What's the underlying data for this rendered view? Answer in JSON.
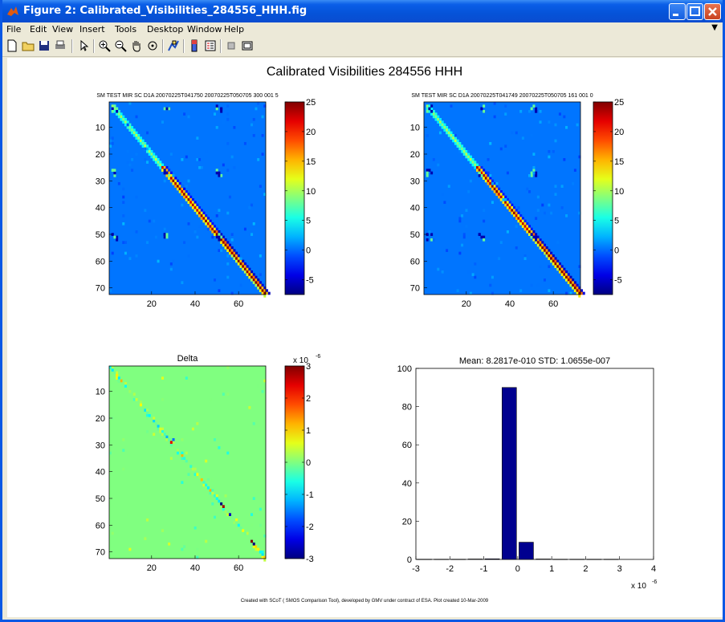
{
  "window": {
    "title": "Figure 2: Calibrated_Visibilities_284556_HHH.fig"
  },
  "menu": [
    "File",
    "Edit",
    "View",
    "Insert",
    "Tools",
    "Desktop",
    "Window",
    "Help"
  ],
  "toolbar": [
    "new-icon",
    "open-icon",
    "save-icon",
    "print-icon",
    "pointer-icon",
    "zoom-in-icon",
    "zoom-out-icon",
    "pan-icon",
    "rotate-icon",
    "data-cursor-icon",
    "colorbar-icon",
    "legend-icon",
    "hide-plot-tools-icon",
    "show-plot-tools-icon"
  ],
  "figure": {
    "title": "Calibrated Visibilities 284556 HHH",
    "footer": "Created with SCoT ( SMOS Comparison Tool), developed by GMV under contract of ESA. Plot created 10-Mar-2009"
  },
  "colors": {
    "accent_bar": "#00008f",
    "delta_bg": "#7fff7f",
    "matrix_bg": "#1e78f0"
  },
  "chart_data": [
    {
      "type": "heatmap",
      "title": "SM TEST MIR SC D1A 20070225T041750 20070225T050705 300 001 5",
      "ytick_labels": [
        "10",
        "20",
        "30",
        "40",
        "50",
        "60",
        "70"
      ],
      "yticks": [
        10,
        20,
        30,
        40,
        50,
        60,
        70
      ],
      "xtick_labels": [
        "20",
        "40",
        "60"
      ],
      "xticks": [
        20,
        40,
        60
      ],
      "xlim": [
        0.5,
        72.5
      ],
      "ylim": [
        0.5,
        72.5
      ],
      "colorbar": {
        "ticks": [
          25,
          20,
          15,
          10,
          5,
          0,
          -5
        ],
        "tick_labels": [
          "25",
          "20",
          "15",
          "10",
          "5",
          "0",
          "-5"
        ],
        "range": [
          -7.5,
          25
        ]
      },
      "pattern": "diagonal-blocks"
    },
    {
      "type": "heatmap",
      "title": "SM TEST MIR SC D1A 20070225T041749 20070225T050705 161 001 0",
      "ytick_labels": [
        "10",
        "20",
        "30",
        "40",
        "50",
        "60",
        "70"
      ],
      "yticks": [
        10,
        20,
        30,
        40,
        50,
        60,
        70
      ],
      "xtick_labels": [
        "20",
        "40",
        "60"
      ],
      "xticks": [
        20,
        40,
        60
      ],
      "xlim": [
        0.5,
        72.5
      ],
      "ylim": [
        0.5,
        72.5
      ],
      "colorbar": {
        "ticks": [
          25,
          20,
          15,
          10,
          5,
          0,
          -5
        ],
        "tick_labels": [
          "25",
          "20",
          "15",
          "10",
          "5",
          "0",
          "-5"
        ],
        "range": [
          -7.5,
          25
        ]
      },
      "pattern": "diagonal-blocks"
    },
    {
      "type": "heatmap",
      "title": "Delta",
      "ytick_labels": [
        "10",
        "20",
        "30",
        "40",
        "50",
        "60",
        "70"
      ],
      "yticks": [
        10,
        20,
        30,
        40,
        50,
        60,
        70
      ],
      "xtick_labels": [
        "20",
        "40",
        "60"
      ],
      "xticks": [
        20,
        40,
        60
      ],
      "xlim": [
        0.5,
        72.5
      ],
      "ylim": [
        0.5,
        72.5
      ],
      "colorbar": {
        "ticks": [
          3,
          2,
          1,
          0,
          -1,
          -2,
          -3
        ],
        "tick_labels": [
          "3",
          "2",
          "1",
          "0",
          "-1",
          "-2",
          "-3"
        ],
        "range": [
          -3,
          3
        ],
        "multiplier": "x 10",
        "exponent": "-6"
      },
      "pattern": "sparse-diagonal"
    },
    {
      "type": "bar",
      "title": "Mean: 8.2817e-010 STD: 1.0655e-007",
      "x": [
        -2.75,
        -2.25,
        -1.75,
        -1.25,
        -0.75,
        -0.25,
        0.25,
        0.75,
        1.25,
        1.75,
        2.25,
        2.75
      ],
      "values": [
        0.1,
        0.1,
        0.1,
        0.2,
        0.3,
        90,
        9,
        0.2,
        0.1,
        0.1,
        0.1,
        0.1
      ],
      "bar_width": 0.5,
      "xlim": [
        -3,
        4
      ],
      "ylim": [
        0,
        100
      ],
      "xticks": [
        -3,
        -2,
        -1,
        0,
        1,
        2,
        3,
        4
      ],
      "xtick_labels": [
        "-3",
        "-2",
        "-1",
        "0",
        "1",
        "2",
        "3",
        "4"
      ],
      "yticks": [
        0,
        20,
        40,
        60,
        80,
        100
      ],
      "ytick_labels": [
        "0",
        "20",
        "40",
        "60",
        "80",
        "100"
      ],
      "x_multiplier": "x 10",
      "x_exponent": "-6",
      "color": "#00008f"
    }
  ]
}
